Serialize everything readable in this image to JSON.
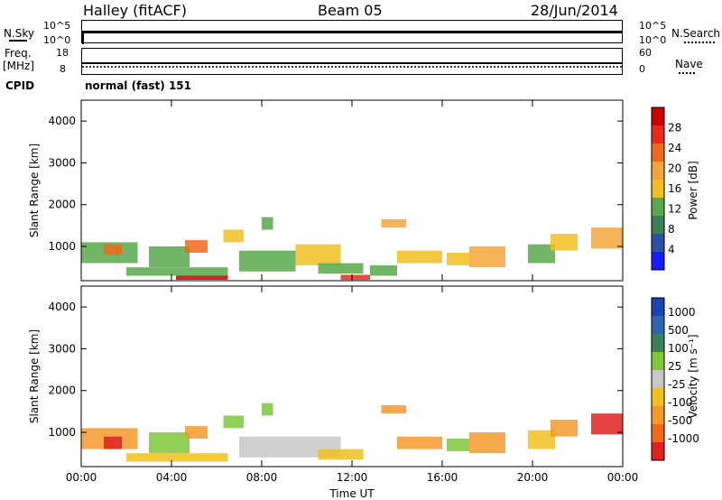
{
  "header": {
    "station": "Halley (fitACF)",
    "beam": "Beam 05",
    "date": "28/Jun/2014"
  },
  "strips": {
    "nsky_label": "N.Sky",
    "nsearch_label": "N.Search",
    "noise_ticks_left": [
      "10^5",
      "10^0"
    ],
    "noise_ticks_right": [
      "10^5",
      "10^0"
    ],
    "freq_label_1": "Freq.",
    "freq_label_2": "[MHz]",
    "freq_ticks": [
      "18",
      "8"
    ],
    "nave_label": "Nave",
    "nave_ticks": [
      "60",
      "0"
    ],
    "cpid_label": "CPID",
    "cpid_text": "normal (fast) 151"
  },
  "colors": {
    "power_scale": [
      "#1a1aff",
      "#2f50a8",
      "#3a7f5a",
      "#58a84c",
      "#f0c020",
      "#f3a43a",
      "#f06a1a",
      "#e82a1a",
      "#cc0000"
    ],
    "velocity_scale": [
      "#1a44b3",
      "#2f64b0",
      "#3a7f5a",
      "#7ec83a",
      "#c8c8c8",
      "#f0c020",
      "#f39a2a",
      "#f06a1a",
      "#e02020"
    ]
  },
  "chart_data": [
    {
      "type": "heatmap",
      "panel": "power",
      "xlabel": "Time UT",
      "ylabel": "Slant Range [km]",
      "x_tick_labels": [
        "00:00",
        "04:00",
        "08:00",
        "12:00",
        "16:00",
        "20:00",
        "00:00"
      ],
      "y_tick_labels": [
        "1000",
        "2000",
        "3000",
        "4000"
      ],
      "xlim": [
        "00:00",
        "24:00"
      ],
      "ylim": [
        180,
        4500
      ],
      "colorbar_label": "Power [dB]",
      "colorbar_ticks": [
        "4",
        "8",
        "12",
        "16",
        "20",
        "24",
        "28"
      ],
      "colorbar_range": [
        0,
        30
      ],
      "echo_regions": [
        {
          "t0": 0.0,
          "t1": 2.5,
          "r0": 600,
          "r1": 1100,
          "level": 12
        },
        {
          "t0": 1.0,
          "t1": 1.8,
          "r0": 800,
          "r1": 1050,
          "level": 20
        },
        {
          "t0": 2.0,
          "t1": 6.5,
          "r0": 300,
          "r1": 500,
          "level": 10
        },
        {
          "t0": 3.0,
          "t1": 4.8,
          "r0": 500,
          "r1": 1000,
          "level": 12
        },
        {
          "t0": 4.6,
          "t1": 5.6,
          "r0": 850,
          "r1": 1150,
          "level": 22
        },
        {
          "t0": 4.2,
          "t1": 6.5,
          "r0": 200,
          "r1": 300,
          "level": 28
        },
        {
          "t0": 6.3,
          "t1": 7.2,
          "r0": 1100,
          "r1": 1400,
          "level": 14
        },
        {
          "t0": 7.0,
          "t1": 9.5,
          "r0": 400,
          "r1": 900,
          "level": 12
        },
        {
          "t0": 8.0,
          "t1": 8.5,
          "r0": 1400,
          "r1": 1700,
          "level": 10
        },
        {
          "t0": 9.5,
          "t1": 11.5,
          "r0": 550,
          "r1": 1050,
          "level": 14
        },
        {
          "t0": 10.5,
          "t1": 12.5,
          "r0": 350,
          "r1": 600,
          "level": 12
        },
        {
          "t0": 11.5,
          "t1": 12.8,
          "r0": 200,
          "r1": 320,
          "level": 26
        },
        {
          "t0": 13.3,
          "t1": 14.4,
          "r0": 1450,
          "r1": 1650,
          "level": 18
        },
        {
          "t0": 12.8,
          "t1": 14.0,
          "r0": 300,
          "r1": 550,
          "level": 12
        },
        {
          "t0": 14.0,
          "t1": 16.0,
          "r0": 600,
          "r1": 900,
          "level": 16
        },
        {
          "t0": 16.2,
          "t1": 17.2,
          "r0": 550,
          "r1": 850,
          "level": 14
        },
        {
          "t0": 17.2,
          "t1": 18.8,
          "r0": 500,
          "r1": 1000,
          "level": 18
        },
        {
          "t0": 19.8,
          "t1": 21.0,
          "r0": 600,
          "r1": 1050,
          "level": 12
        },
        {
          "t0": 20.8,
          "t1": 22.0,
          "r0": 900,
          "r1": 1300,
          "level": 16
        },
        {
          "t0": 22.6,
          "t1": 24.0,
          "r0": 950,
          "r1": 1450,
          "level": 18
        }
      ]
    },
    {
      "type": "heatmap",
      "panel": "velocity",
      "xlabel": "Time UT",
      "ylabel": "Slant Range [km]",
      "x_tick_labels": [
        "00:00",
        "04:00",
        "08:00",
        "12:00",
        "16:00",
        "20:00",
        "00:00"
      ],
      "y_tick_labels": [
        "1000",
        "2000",
        "3000",
        "4000"
      ],
      "xlim": [
        "00:00",
        "24:00"
      ],
      "ylim": [
        180,
        4500
      ],
      "colorbar_label": "Velocity [m s⁻¹]",
      "colorbar_ticks": [
        "1000",
        "500",
        "100",
        "25",
        "-25",
        "-100",
        "-500",
        "-1000"
      ],
      "echo_regions": [
        {
          "t0": 0.0,
          "t1": 2.5,
          "r0": 600,
          "r1": 1100,
          "vel": -200
        },
        {
          "t0": 1.0,
          "t1": 1.8,
          "r0": 600,
          "r1": 900,
          "vel": -600
        },
        {
          "t0": 2.0,
          "t1": 6.5,
          "r0": 300,
          "r1": 500,
          "vel": -60
        },
        {
          "t0": 3.0,
          "t1": 4.8,
          "r0": 500,
          "r1": 1000,
          "vel": 60
        },
        {
          "t0": 4.6,
          "t1": 5.6,
          "r0": 850,
          "r1": 1150,
          "vel": -120
        },
        {
          "t0": 6.3,
          "t1": 7.2,
          "r0": 1100,
          "r1": 1400,
          "vel": 60
        },
        {
          "t0": 7.0,
          "t1": 11.5,
          "r0": 400,
          "r1": 900,
          "vel": 0
        },
        {
          "t0": 8.0,
          "t1": 8.5,
          "r0": 1400,
          "r1": 1700,
          "vel": 80
        },
        {
          "t0": 10.5,
          "t1": 12.5,
          "r0": 350,
          "r1": 600,
          "vel": -30
        },
        {
          "t0": 13.3,
          "t1": 14.4,
          "r0": 1450,
          "r1": 1650,
          "vel": -400
        },
        {
          "t0": 14.0,
          "t1": 16.0,
          "r0": 600,
          "r1": 900,
          "vel": -150
        },
        {
          "t0": 16.2,
          "t1": 17.2,
          "r0": 550,
          "r1": 850,
          "vel": 60
        },
        {
          "t0": 17.2,
          "t1": 18.8,
          "r0": 500,
          "r1": 1000,
          "vel": -120
        },
        {
          "t0": 19.8,
          "t1": 21.0,
          "r0": 600,
          "r1": 1050,
          "vel": -40
        },
        {
          "t0": 20.8,
          "t1": 22.0,
          "r0": 900,
          "r1": 1300,
          "vel": -150
        },
        {
          "t0": 22.6,
          "t1": 24.0,
          "r0": 950,
          "r1": 1450,
          "vel": -550
        }
      ]
    }
  ]
}
